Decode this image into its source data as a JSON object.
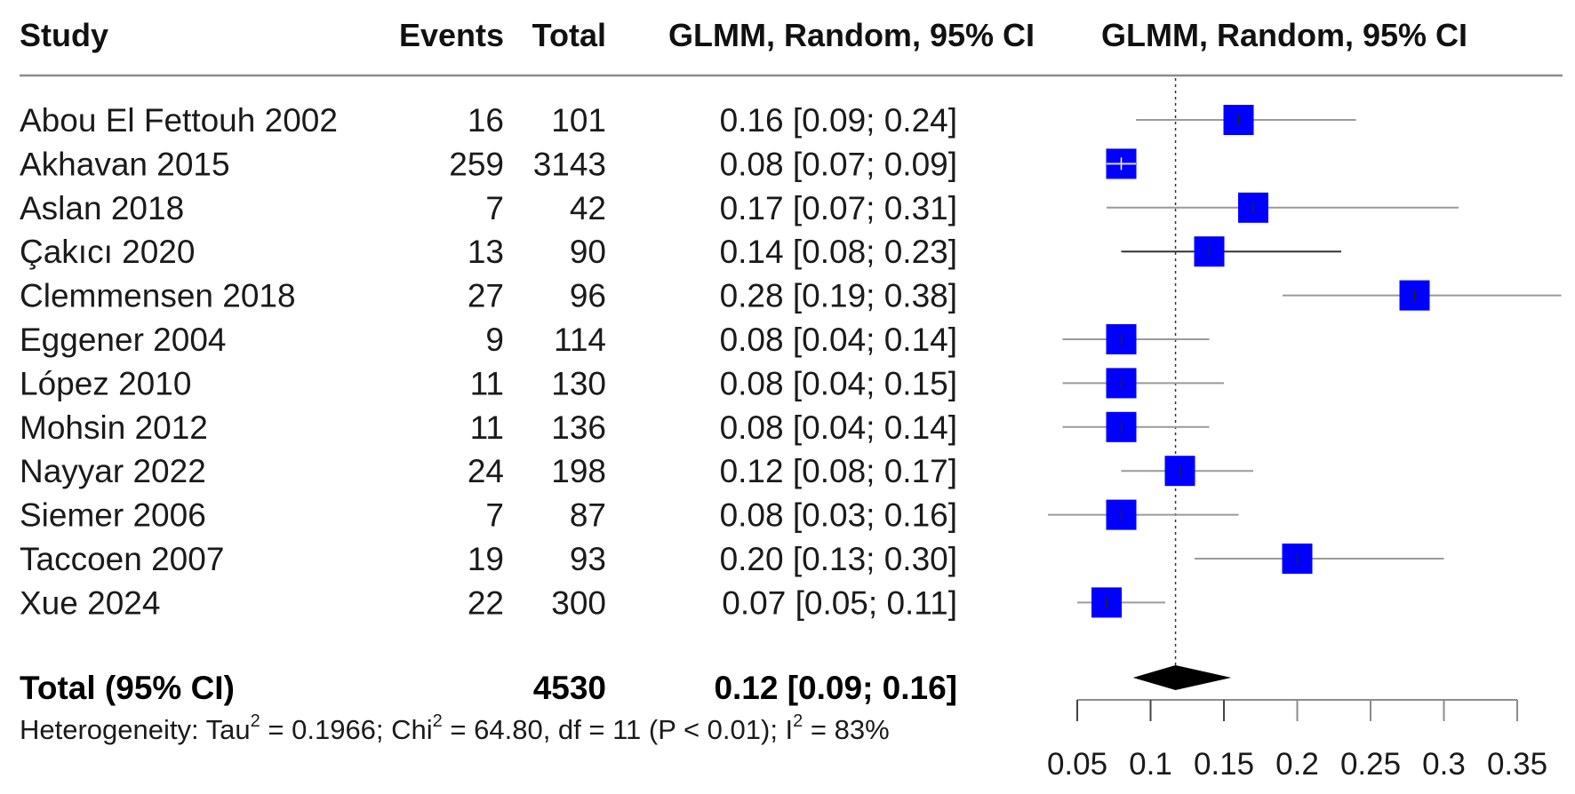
{
  "chart_data": {
    "type": "forest",
    "columns": {
      "study": "Study",
      "events": "Events",
      "total": "Total",
      "ci_text": "GLMM, Random, 95% CI",
      "plot": "GLMM, Random, 95% CI"
    },
    "studies": [
      {
        "name": "Abou El Fettouh 2002",
        "events": "16",
        "total": "101",
        "ci_text": "0.16 [0.09; 0.24]",
        "est": 0.16,
        "lo": 0.09,
        "hi": 0.24
      },
      {
        "name": "Akhavan 2015",
        "events": "259",
        "total": "3143",
        "ci_text": "0.08 [0.07; 0.09]",
        "est": 0.08,
        "lo": 0.07,
        "hi": 0.09
      },
      {
        "name": "Aslan 2018",
        "events": "7",
        "total": "42",
        "ci_text": "0.17 [0.07; 0.31]",
        "est": 0.17,
        "lo": 0.07,
        "hi": 0.31
      },
      {
        "name": "Çakıcı 2020",
        "events": "13",
        "total": "90",
        "ci_text": "0.14 [0.08; 0.23]",
        "est": 0.14,
        "lo": 0.08,
        "hi": 0.23
      },
      {
        "name": "Clemmensen 2018",
        "events": "27",
        "total": "96",
        "ci_text": "0.28 [0.19; 0.38]",
        "est": 0.28,
        "lo": 0.19,
        "hi": 0.38
      },
      {
        "name": "Eggener 2004",
        "events": "9",
        "total": "114",
        "ci_text": "0.08 [0.04; 0.14]",
        "est": 0.08,
        "lo": 0.04,
        "hi": 0.14
      },
      {
        "name": "López 2010",
        "events": "11",
        "total": "130",
        "ci_text": "0.08 [0.04; 0.15]",
        "est": 0.08,
        "lo": 0.04,
        "hi": 0.15
      },
      {
        "name": "Mohsin 2012",
        "events": "11",
        "total": "136",
        "ci_text": "0.08 [0.04; 0.14]",
        "est": 0.08,
        "lo": 0.04,
        "hi": 0.14
      },
      {
        "name": "Nayyar 2022",
        "events": "24",
        "total": "198",
        "ci_text": "0.12 [0.08; 0.17]",
        "est": 0.12,
        "lo": 0.08,
        "hi": 0.17
      },
      {
        "name": "Siemer 2006",
        "events": "7",
        "total": "87",
        "ci_text": "0.08 [0.03; 0.16]",
        "est": 0.08,
        "lo": 0.03,
        "hi": 0.16
      },
      {
        "name": "Taccoen 2007",
        "events": "19",
        "total": "93",
        "ci_text": "0.20 [0.13; 0.30]",
        "est": 0.2,
        "lo": 0.13,
        "hi": 0.3
      },
      {
        "name": "Xue 2024",
        "events": "22",
        "total": "300",
        "ci_text": "0.07 [0.05; 0.11]",
        "est": 0.07,
        "lo": 0.05,
        "hi": 0.11
      }
    ],
    "pooled": {
      "label": "Total (95% CI)",
      "total": "4530",
      "ci_text": "0.12 [0.09; 0.16]",
      "est": 0.117,
      "lo": 0.088,
      "hi": 0.155
    },
    "heterogeneity": {
      "prefix": "Heterogeneity: Tau",
      "tau2_val": " = 0.1966; Chi",
      "chi2_val": " = 64.80, df = 11 (P < 0.01); I",
      "i2_val": " = 83%",
      "sup": "2"
    },
    "xaxis": {
      "ticks": [
        0.05,
        0.1,
        0.15,
        0.2,
        0.25,
        0.3,
        0.35
      ],
      "tick_labels": [
        "0.05",
        "0.1",
        "0.15",
        "0.2",
        "0.25",
        "0.3",
        "0.35"
      ],
      "range": [
        0.05,
        0.35
      ]
    },
    "reference_line": 0.117,
    "colors": {
      "square": "#0000ff",
      "ci_line": "#9a9a9a",
      "diamond": "#000000",
      "separator": "#8c8c8c"
    }
  }
}
